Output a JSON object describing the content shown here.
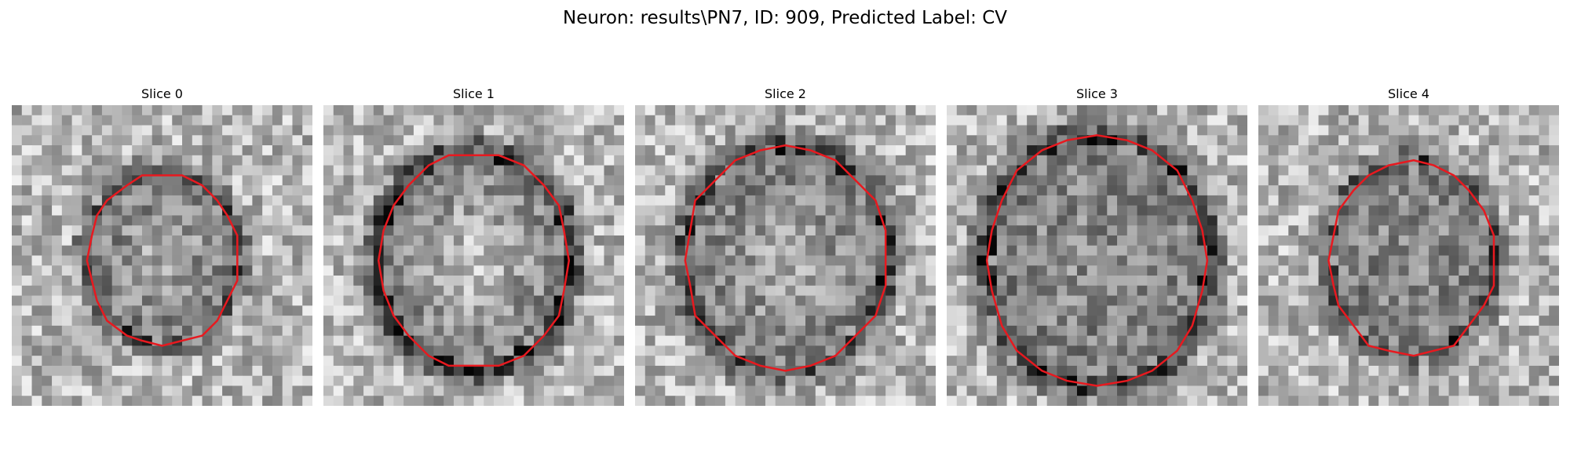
{
  "figure": {
    "title": "Neuron: results\\PN7, ID: 909, Predicted Label: CV"
  },
  "panels": [
    {
      "title": "Slice 0",
      "outline_color": "#e8191f"
    },
    {
      "title": "Slice 1",
      "outline_color": "#e8191f"
    },
    {
      "title": "Slice 2",
      "outline_color": "#e8191f"
    },
    {
      "title": "Slice 3",
      "outline_color": "#e8191f"
    },
    {
      "title": "Slice 4",
      "outline_color": "#e8191f"
    }
  ]
}
